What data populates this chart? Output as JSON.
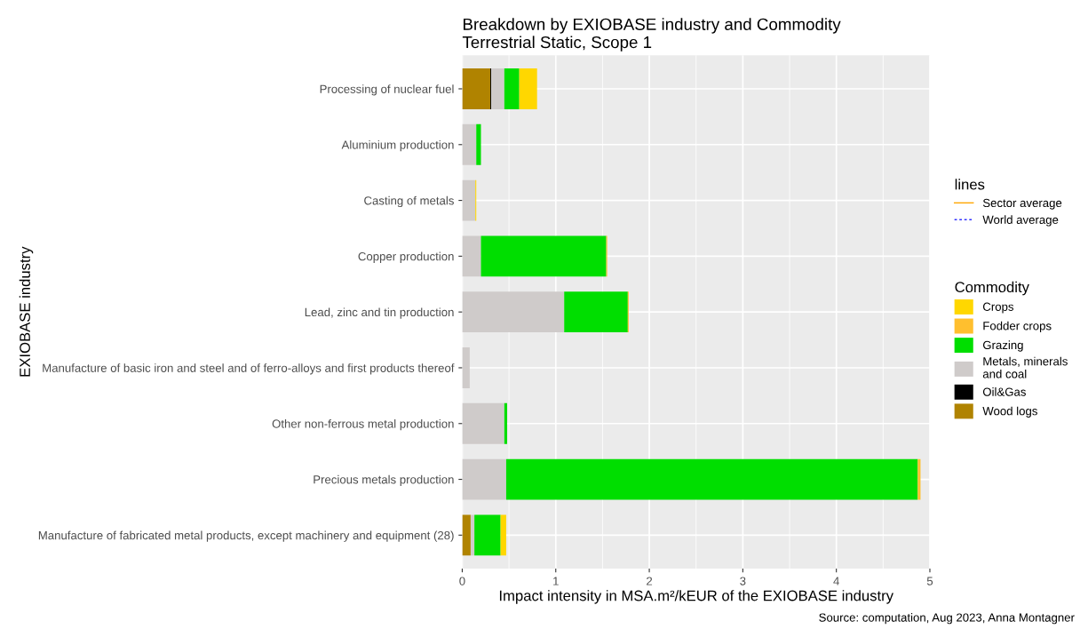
{
  "chart_data": {
    "type": "bar",
    "orientation": "horizontal",
    "stacked": true,
    "title": "Breakdown by EXIOBASE industry and Commodity\nTerrestrial Static, Scope 1",
    "xlabel": "Impact intensity in MSA.m²/kEUR of the EXIOBASE industry",
    "ylabel": "EXIOBASE industry",
    "legend_title": [
      "lines",
      "Commodity"
    ],
    "categories": [
      "Processing of nuclear fuel",
      "Aluminium production",
      "Casting of metals",
      "Copper production",
      "Lead, zinc and tin production",
      "Manufacture of basic iron and steel and of ferro-alloys and first products thereof",
      "Other non-ferrous metal production",
      "Precious metals production",
      "Manufacture of fabricated metal products, except machinery and equipment (28)"
    ],
    "series": [
      {
        "name": "Wood logs",
        "color": "#b08300",
        "values": [
          0.3,
          0,
          0,
          0,
          0,
          0,
          0,
          0,
          0.09
        ]
      },
      {
        "name": "Oil&Gas",
        "color": "#000000",
        "values": [
          0.01,
          0,
          0,
          0,
          0,
          0,
          0,
          0,
          0
        ]
      },
      {
        "name": "Metals, minerals\nand coal",
        "color": "#cfcbca",
        "values": [
          0.14,
          0.15,
          0.14,
          0.2,
          1.09,
          0.08,
          0.45,
          0.47,
          0.04
        ]
      },
      {
        "name": "Grazing",
        "color": "#00de00",
        "values": [
          0.16,
          0.05,
          0,
          1.34,
          0.68,
          0,
          0.03,
          4.4,
          0.28
        ]
      },
      {
        "name": "Fodder crops",
        "color": "#ffbf2e",
        "values": [
          0,
          0,
          0,
          0.01,
          0.01,
          0,
          0,
          0.03,
          0
        ]
      },
      {
        "name": "Crops",
        "color": "#ffd700",
        "values": [
          0.19,
          0,
          0.01,
          0,
          0,
          0,
          0,
          0,
          0.06
        ]
      },
      {
        "name": "Sector average",
        "type": "line",
        "line_style": "solid",
        "color": "#ffa500",
        "values": [
          null,
          null,
          null,
          null,
          null,
          null,
          null,
          null,
          null
        ]
      },
      {
        "name": "World average",
        "type": "line",
        "line_style": "dashed",
        "color": "#3333ff",
        "values": [
          null,
          null,
          null,
          null,
          null,
          null,
          null,
          null,
          null
        ]
      }
    ],
    "xlim": [
      0,
      5
    ],
    "xticks": [
      0,
      1,
      2,
      3,
      4,
      5
    ],
    "grid": true,
    "legend": "right",
    "annotations": [
      "Source: computation, Aug 2023, Anna Montagner"
    ]
  }
}
